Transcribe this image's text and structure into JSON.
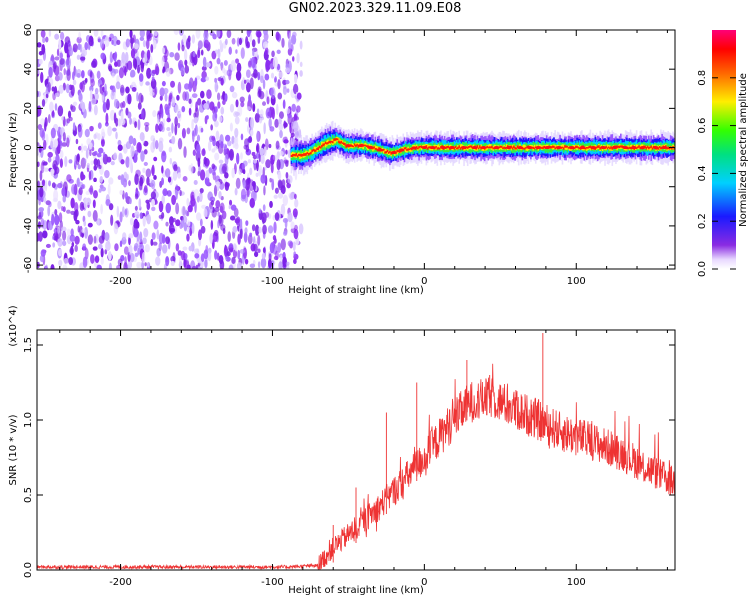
{
  "title": "GN02.2023.329.11.09.E08",
  "colors": {
    "line": "#ee3333",
    "points": "#7a1fe6"
  },
  "colorbar": {
    "label": "Normalized spectral amplitude",
    "ticks": [
      "0.0",
      "0.2",
      "0.4",
      "0.6",
      "0.8"
    ],
    "range": [
      0,
      1
    ],
    "colormap": "rainbow (purple-blue-cyan-green-yellow-red-magenta)"
  },
  "chart_data": [
    {
      "type": "heatmap",
      "title": "",
      "xlabel": "Height of straight line (km)",
      "ylabel": "Frequency (Hz)",
      "xlim": [
        -255,
        165
      ],
      "ylim": [
        -62,
        60
      ],
      "xticks": [
        -200,
        -100,
        0,
        100
      ],
      "yticks": [
        -60,
        -40,
        -20,
        0,
        20,
        40,
        60
      ],
      "xtick_labels": [
        "-200",
        "-100",
        "0",
        "100"
      ],
      "ytick_labels": [
        "-60",
        "-40",
        "-20",
        "0",
        "20",
        "40",
        "60"
      ],
      "noise_region_x": [
        -255,
        -87
      ],
      "signal_center_track": [
        [
          -88,
          -4
        ],
        [
          -80,
          -4
        ],
        [
          -74,
          -2
        ],
        [
          -66,
          2
        ],
        [
          -58,
          4
        ],
        [
          -52,
          1
        ],
        [
          -40,
          1
        ],
        [
          -30,
          -1
        ],
        [
          -22,
          -3
        ],
        [
          -14,
          -1
        ],
        [
          -5,
          0
        ],
        [
          20,
          0
        ],
        [
          60,
          0
        ],
        [
          100,
          0
        ],
        [
          140,
          0
        ],
        [
          165,
          0
        ]
      ]
    },
    {
      "type": "line",
      "title": "",
      "xlabel": "Height of straight line (km)",
      "ylabel": "SNR (10 * v/v)",
      "y_multiplier": "(x10^4)",
      "xlim": [
        -255,
        165
      ],
      "ylim": [
        0,
        1.6
      ],
      "xticks": [
        -200,
        -100,
        0,
        100
      ],
      "yticks": [
        0.0,
        0.5,
        1.0,
        1.5
      ],
      "xtick_labels": [
        "-200",
        "-100",
        "0",
        "100"
      ],
      "ytick_labels": [
        "0.0",
        "0.5",
        "1.0",
        "1.5"
      ],
      "trend": {
        "x": [
          -255,
          -90,
          -70,
          -60,
          -45,
          -30,
          -15,
          0,
          15,
          30,
          45,
          60,
          75,
          90,
          110,
          130,
          150,
          165
        ],
        "y": [
          0.02,
          0.02,
          0.03,
          0.15,
          0.28,
          0.42,
          0.58,
          0.75,
          0.95,
          1.12,
          1.15,
          1.07,
          1.0,
          0.92,
          0.86,
          0.78,
          0.66,
          0.58
        ]
      },
      "spikes": [
        [
          -60,
          0.3
        ],
        [
          -45,
          0.55
        ],
        [
          -25,
          1.05
        ],
        [
          -5,
          1.25
        ],
        [
          28,
          1.4
        ],
        [
          43,
          1.3
        ],
        [
          78,
          1.58
        ]
      ]
    }
  ]
}
